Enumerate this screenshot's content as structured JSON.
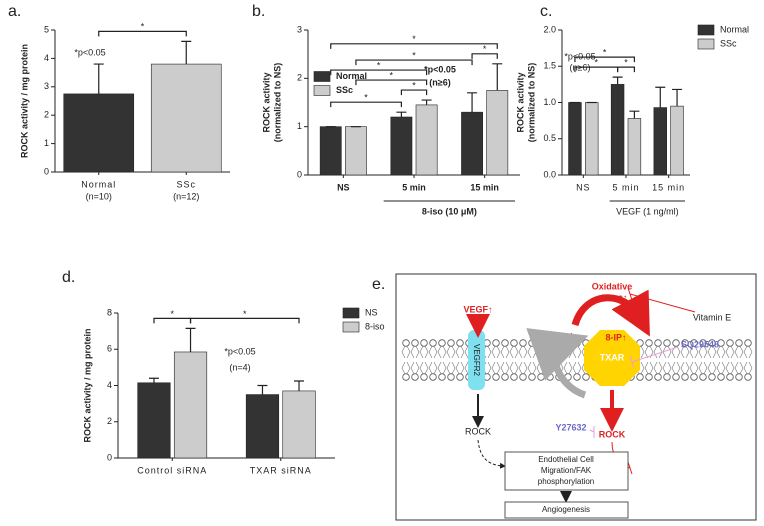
{
  "chart_data": [
    {
      "panel": "a.",
      "type": "bar",
      "ylabel": [
        "ROCK activity / mg protein"
      ],
      "categories": [
        "Normal",
        "SSc"
      ],
      "category_notes": [
        "(n=10)",
        "(n=12)"
      ],
      "values": [
        2.75,
        3.8
      ],
      "errors": [
        1.05,
        0.8
      ],
      "colors": [
        "#333333",
        "#cccccc"
      ],
      "ylim": [
        0,
        5
      ],
      "yticks": [
        0,
        1,
        2,
        3,
        4,
        5
      ],
      "annotations": [
        "*p<0.05"
      ],
      "brackets": [
        {
          "from": [
            0,
            0
          ],
          "to": [
            0,
            1
          ],
          "label": "*"
        }
      ]
    },
    {
      "panel": "b.",
      "type": "bar",
      "ylabel": [
        "ROCK activity",
        "(normalized to NS)"
      ],
      "categories": [
        "NS",
        "5 min",
        "15 min"
      ],
      "group_label": {
        "text": "8-iso (10 μM)",
        "from": 1,
        "to": 2
      },
      "series": [
        {
          "name": "Normal",
          "color": "#333333",
          "values": [
            1,
            1.2,
            1.3
          ],
          "errors": [
            0,
            0.1,
            0.4
          ]
        },
        {
          "name": "SSc",
          "color": "#cccccc",
          "values": [
            1,
            1.45,
            1.75
          ],
          "errors": [
            0,
            0.1,
            0.55
          ]
        }
      ],
      "ylim": [
        0,
        3
      ],
      "yticks": [
        0,
        1,
        2,
        3
      ],
      "legend": "center left",
      "annotations": [
        "*p<0.05",
        "(n≥6)"
      ],
      "brackets": [
        {
          "from": [
            0,
            0
          ],
          "to": [
            0,
            1
          ],
          "label": "*"
        },
        {
          "from": [
            0,
            1
          ],
          "to": [
            1,
            1
          ],
          "label": "*"
        },
        {
          "from": [
            1,
            0
          ],
          "to": [
            1,
            1
          ],
          "label": "*"
        },
        {
          "from": [
            0,
            0
          ],
          "to": [
            1,
            1
          ],
          "label": "*"
        },
        {
          "from": [
            1,
            0
          ],
          "to": [
            0,
            2
          ],
          "label": "*"
        },
        {
          "from": [
            0,
            2
          ],
          "to": [
            1,
            2
          ],
          "label": "*"
        },
        {
          "from": [
            0,
            0
          ],
          "to": [
            1,
            2
          ],
          "label": "*"
        }
      ]
    },
    {
      "panel": "c.",
      "type": "bar",
      "ylabel": [
        "ROCK activity",
        "(normalized to NS)"
      ],
      "categories": [
        "NS",
        "5 min",
        "15 min"
      ],
      "group_label": {
        "text": "VEGF (1 ng/ml)",
        "from": 1,
        "to": 2
      },
      "series": [
        {
          "name": "Normal",
          "color": "#333333",
          "values": [
            1,
            1.25,
            0.93
          ],
          "errors": [
            0,
            0.1,
            0.28
          ]
        },
        {
          "name": "SSc",
          "color": "#cccccc",
          "values": [
            1,
            0.78,
            0.95
          ],
          "errors": [
            0,
            0.1,
            0.23
          ]
        }
      ],
      "ylim": [
        0,
        2
      ],
      "yticks": [
        {
          "value": 0,
          "label": "0.0"
        },
        {
          "value": 0.5,
          "label": "0.5"
        },
        {
          "value": 1,
          "label": "1.0"
        },
        {
          "value": 1.5,
          "label": "1.5"
        },
        {
          "value": 2,
          "label": "2.0"
        }
      ],
      "legend": "right",
      "annotations": [
        "*p<0.05",
        "(n≥6)"
      ],
      "brackets": [
        {
          "from": [
            0,
            0
          ],
          "to": [
            0,
            1
          ],
          "label": "*"
        },
        {
          "from": [
            0,
            1
          ],
          "to": [
            1,
            1
          ],
          "label": "*"
        },
        {
          "from": [
            0,
            0
          ],
          "to": [
            1,
            1
          ],
          "label": "*"
        }
      ]
    },
    {
      "panel": "d.",
      "type": "bar",
      "ylabel": [
        "ROCK activity / mg protein"
      ],
      "categories": [
        "Control siRNA",
        "TXAR siRNA"
      ],
      "series": [
        {
          "name": "NS",
          "color": "#333333",
          "values": [
            4.15,
            3.5
          ],
          "errors": [
            0.25,
            0.5
          ]
        },
        {
          "name": "8-iso",
          "color": "#cccccc",
          "values": [
            5.85,
            3.7
          ],
          "errors": [
            1.3,
            0.55
          ]
        }
      ],
      "ylim": [
        0,
        8
      ],
      "yticks": [
        0,
        2,
        4,
        6,
        8
      ],
      "legend": "right",
      "annotations": [
        "*p<0.05",
        "(n=4)"
      ],
      "brackets": [
        {
          "from": [
            0,
            0
          ],
          "to": [
            1,
            0
          ],
          "label": "*"
        },
        {
          "from": [
            1,
            0
          ],
          "to": [
            1,
            1
          ],
          "label": "*"
        }
      ]
    }
  ],
  "diagram": {
    "panel": "e.",
    "oxidative_stress": [
      "Oxidative",
      "stress↑"
    ],
    "vitamin_e": "Vitamin E",
    "vegf": "VEGF↑",
    "vegfr2": "VEGFR2",
    "lipids": "Lipids",
    "eight_ip": "8-IP↑",
    "sq29548": "SQ29548",
    "txar": "TXAR",
    "rock_left": "ROCK",
    "rock_right": "ROCK",
    "y27632": "Y27632",
    "outcome": [
      "Endothelial Cell",
      "Migration/FAK",
      "phosphorylation"
    ],
    "angiogenesis": "Angiogenesis"
  }
}
